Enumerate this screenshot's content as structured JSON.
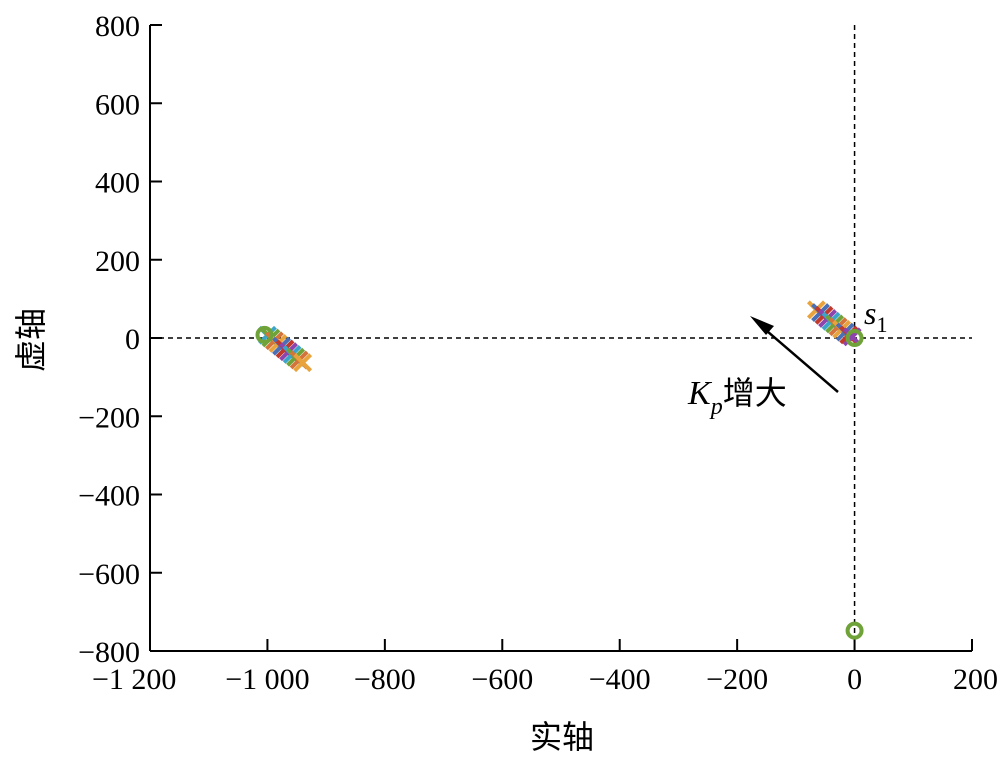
{
  "chart_data": {
    "type": "scatter",
    "title": "",
    "xlabel": "实轴",
    "ylabel": "虚轴",
    "xlim": [
      -1200,
      200
    ],
    "ylim": [
      -800,
      800
    ],
    "xticks": [
      -1200,
      -1000,
      -800,
      -600,
      -400,
      -200,
      0,
      200
    ],
    "xtick_labels": [
      "−1 200",
      "−1 000",
      "−800",
      "−600",
      "−400",
      "−200",
      "0",
      "200"
    ],
    "yticks": [
      800,
      600,
      400,
      200,
      0,
      -200,
      -400,
      -600,
      -800
    ],
    "ytick_labels": [
      "800",
      "600",
      "400",
      "200",
      "0",
      "−200",
      "−400",
      "−600",
      "−800"
    ],
    "grid": false,
    "reference_lines": {
      "horizontal_at_y": 0,
      "vertical_at_x": 0,
      "style": "dashed"
    },
    "colors": [
      "#e8a33d",
      "#4a6fb5",
      "#c0392b",
      "#8e44ad",
      "#3ba5c9",
      "#6fa33a",
      "#d4743a"
    ],
    "series": [
      {
        "markers": "x",
        "points": [
          [
            -65,
            72
          ],
          [
            -58,
            65
          ],
          [
            -52,
            58
          ],
          [
            -46,
            50
          ],
          [
            -40,
            43
          ],
          [
            -34,
            36
          ],
          [
            -28,
            29
          ],
          [
            -22,
            22
          ],
          [
            -16,
            15
          ],
          [
            -10,
            8
          ],
          [
            -4,
            3
          ],
          [
            -1000,
            7
          ],
          [
            -994,
            0
          ],
          [
            -988,
            -7
          ],
          [
            -982,
            -14
          ],
          [
            -976,
            -21
          ],
          [
            -970,
            -28
          ],
          [
            -964,
            -35
          ],
          [
            -958,
            -42
          ],
          [
            -952,
            -49
          ],
          [
            -946,
            -56
          ],
          [
            -940,
            -63
          ]
        ]
      },
      {
        "markers": "o",
        "points": [
          [
            0,
            0
          ],
          [
            -1005,
            8
          ],
          [
            0,
            -748
          ]
        ]
      }
    ],
    "annotations": {
      "point_label_name": "s",
      "point_label_sub": "1",
      "arrow_label_name": "K",
      "arrow_label_sub": "p",
      "arrow_label_text": "增大"
    }
  }
}
